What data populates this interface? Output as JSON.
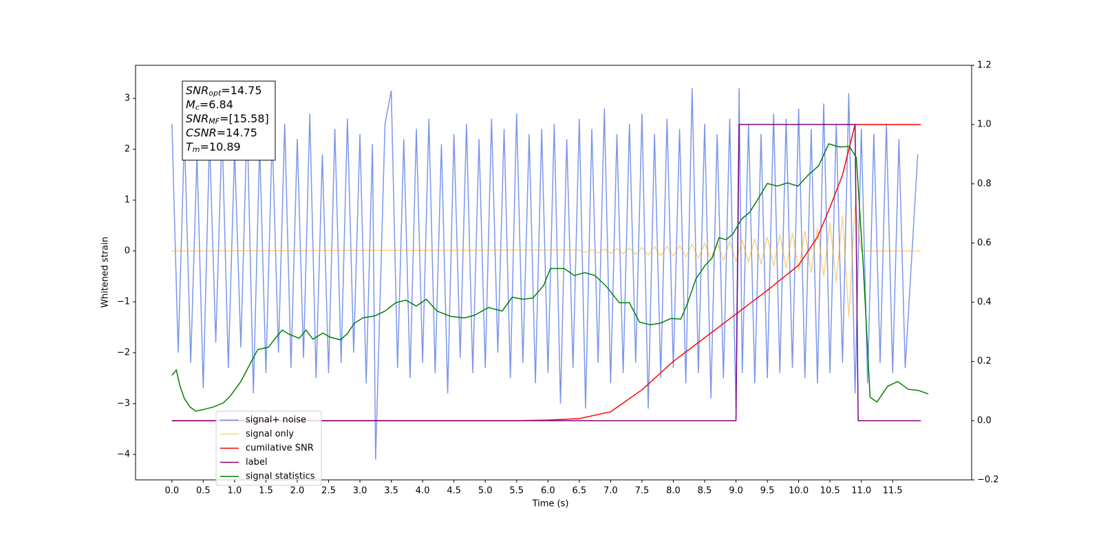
{
  "chart_data": {
    "type": "line",
    "xlabel": "Time (s)",
    "ylabel": "Whitened strain",
    "xlim": [
      -0.58,
      12.76
    ],
    "ylim": [
      -4.5,
      3.65
    ],
    "y2lim": [
      -0.2,
      1.2
    ],
    "xticks": [
      {
        "value": 0,
        "label": "0.0"
      },
      0.5,
      {
        "value": 1,
        "label": "1.0"
      },
      1.5,
      {
        "value": 2,
        "label": "2.0"
      },
      2.5,
      {
        "value": 3,
        "label": "3.0"
      },
      3.5,
      {
        "value": 4,
        "label": "4.0"
      },
      4.5,
      {
        "value": 5,
        "label": "5.0"
      },
      5.5,
      {
        "value": 6,
        "label": "6.0"
      },
      6.5,
      {
        "value": 7,
        "label": "7.0"
      },
      7.5,
      {
        "value": 8,
        "label": "8.0"
      },
      8.5,
      {
        "value": 9,
        "label": "9.0"
      },
      9.5,
      {
        "value": 10,
        "label": "10.0"
      },
      10.5,
      {
        "value": 11,
        "label": "11.0"
      },
      11.5
    ],
    "yticks": [
      {
        "value": -4,
        "label": "−4"
      },
      {
        "value": -3,
        "label": "−3"
      },
      {
        "value": -2,
        "label": "−2"
      },
      {
        "value": -1,
        "label": "−1"
      },
      0,
      1,
      2,
      3
    ],
    "y2ticks": [
      {
        "value": -0.2,
        "label": "−0.2"
      },
      {
        "value": 0,
        "label": "0.0"
      },
      0.2,
      0.4,
      0.6,
      0.8,
      {
        "value": 1,
        "label": "1.0"
      },
      1.2
    ],
    "annotations": [
      {
        "symbol": "SNR",
        "subscript": "opt",
        "text": "=14.75"
      },
      {
        "symbol": "M",
        "subscript": "c",
        "text": "=6.84"
      },
      {
        "symbol": "SNR",
        "subscript": "MF",
        "text": "=[15.58]"
      },
      {
        "symbol": "CSNR",
        "text": "=14.75"
      },
      {
        "symbol": "T",
        "subscript": "m",
        "text": "=10.89"
      }
    ],
    "series": [
      {
        "name": "signal+ noise",
        "color": "#4169e1",
        "alpha": 0.7,
        "x": [
          0,
          0.1,
          0.2,
          0.3,
          0.4,
          0.5,
          0.6,
          0.7,
          0.8,
          0.9,
          1,
          1.1,
          1.2,
          1.3,
          1.4,
          1.5,
          1.6,
          1.7,
          1.8,
          1.9,
          2,
          2.1,
          2.2,
          2.3,
          2.4,
          2.5,
          2.6,
          2.7,
          2.8,
          2.9,
          3,
          3.1,
          3.2,
          3.25,
          3.4,
          3.5,
          3.6,
          3.7,
          3.8,
          3.9,
          4,
          4.1,
          4.2,
          4.3,
          4.4,
          4.5,
          4.6,
          4.7,
          4.8,
          4.9,
          5,
          5.1,
          5.2,
          5.3,
          5.4,
          5.5,
          5.6,
          5.7,
          5.8,
          5.9,
          6,
          6.1,
          6.2,
          6.3,
          6.4,
          6.5,
          6.6,
          6.7,
          6.8,
          6.9,
          7,
          7.1,
          7.2,
          7.3,
          7.4,
          7.5,
          7.6,
          7.7,
          7.8,
          7.9,
          8,
          8.1,
          8.2,
          8.3,
          8.4,
          8.5,
          8.6,
          8.7,
          8.8,
          8.9,
          9,
          9.05,
          9.1,
          9.2,
          9.3,
          9.4,
          9.5,
          9.6,
          9.7,
          9.8,
          9.9,
          10,
          10.1,
          10.2,
          10.3,
          10.4,
          10.5,
          10.6,
          10.7,
          10.8,
          10.9,
          11,
          11.1,
          11.2,
          11.3,
          11.4,
          11.5,
          11.6,
          11.7,
          11.9
        ],
        "values": [
          2.5,
          -2.0,
          2.3,
          -2.2,
          1.9,
          -2.7,
          2.2,
          -1.8,
          2.4,
          -2.3,
          2.0,
          -1.9,
          2.6,
          -2.8,
          2.1,
          -2.4,
          2.3,
          -2.0,
          2.5,
          -2.3,
          2.2,
          -2.1,
          2.7,
          -2.5,
          1.9,
          -2.4,
          2.4,
          -2.2,
          2.6,
          -2.0,
          2.3,
          -2.6,
          2.1,
          -4.1,
          2.5,
          3.15,
          -2.3,
          2.2,
          -2.5,
          2.4,
          -2.2,
          2.6,
          -2.4,
          2.1,
          -2.8,
          2.3,
          -2.1,
          2.5,
          -2.4,
          2.2,
          -2.3,
          2.6,
          -2.0,
          2.4,
          -2.5,
          2.7,
          -2.2,
          2.3,
          -2.6,
          2.4,
          -2.4,
          2.5,
          -3.0,
          2.2,
          -2.3,
          2.6,
          -3.1,
          2.4,
          -2.2,
          2.8,
          -2.6,
          2.3,
          -2.4,
          2.5,
          -2.2,
          2.7,
          -3.1,
          2.3,
          -2.5,
          2.6,
          -2.3,
          2.4,
          -2.6,
          3.2,
          -2.4,
          2.5,
          -2.9,
          2.3,
          -2.5,
          2.6,
          -3.1,
          3.2,
          -2.4,
          2.5,
          -2.6,
          2.3,
          -2.5,
          2.7,
          -2.4,
          2.6,
          -2.3,
          2.8,
          -2.5,
          2.4,
          -2.6,
          2.9,
          -2.4,
          2.5,
          -2.2,
          3.1,
          -2.8,
          2.4,
          -2.6,
          2.3,
          -2.2,
          2.5,
          -2.4,
          2.2,
          -2.3,
          1.9
        ]
      },
      {
        "name": "signal only",
        "color": "#ffa500",
        "alpha": 0.5,
        "x": [
          0,
          6.5,
          6.6,
          6.7,
          6.8,
          6.9,
          7,
          7.1,
          7.2,
          7.3,
          7.4,
          7.5,
          7.6,
          7.7,
          7.8,
          7.9,
          8,
          8.1,
          8.2,
          8.3,
          8.4,
          8.5,
          8.6,
          8.7,
          8.8,
          8.9,
          9,
          9.1,
          9.2,
          9.3,
          9.4,
          9.5,
          9.6,
          9.7,
          9.8,
          9.9,
          10,
          10.1,
          10.2,
          10.3,
          10.4,
          10.5,
          10.6,
          10.7,
          10.8,
          10.9,
          11,
          11.95
        ],
        "values": [
          0,
          0.02,
          -0.03,
          0.03,
          -0.04,
          0.04,
          -0.05,
          0.05,
          -0.06,
          0.06,
          -0.07,
          0.07,
          -0.08,
          0.08,
          -0.09,
          0.09,
          -0.1,
          0.11,
          -0.12,
          0.13,
          -0.14,
          0.15,
          -0.16,
          0.17,
          -0.18,
          0.19,
          -0.2,
          0.21,
          -0.22,
          0.24,
          -0.26,
          0.28,
          -0.3,
          0.32,
          -0.34,
          0.36,
          -0.38,
          0.4,
          -0.43,
          0.46,
          -0.5,
          0.55,
          -0.62,
          0.7,
          -1.3,
          0.9,
          0,
          0
        ]
      },
      {
        "name": "cumilative SNR",
        "color": "#ff0000",
        "axis": "y2",
        "x": [
          0,
          5.5,
          6,
          6.5,
          7,
          7.5,
          8,
          8.5,
          9,
          9.5,
          10,
          10.3,
          10.5,
          10.7,
          10.9,
          10.95,
          11.95
        ],
        "values": [
          0,
          0,
          0.002,
          0.007,
          0.03,
          0.104,
          0.2,
          0.28,
          0.36,
          0.44,
          0.525,
          0.62,
          0.72,
          0.83,
          1,
          1,
          1
        ]
      },
      {
        "name": "label",
        "color": "#800080",
        "axis": "y2",
        "x": [
          0,
          9,
          9.05,
          10.9,
          10.95,
          11.95
        ],
        "values": [
          0,
          0,
          1,
          1,
          0,
          0
        ]
      },
      {
        "name": "signal statistics",
        "color": "#008000",
        "axis": "y2",
        "x": [
          0,
          0.07,
          0.13,
          0.2,
          0.29,
          0.38,
          0.49,
          0.66,
          0.82,
          0.93,
          1.1,
          1.26,
          1.37,
          1.54,
          1.65,
          1.76,
          1.87,
          2.03,
          2.14,
          2.25,
          2.41,
          2.52,
          2.69,
          2.8,
          2.91,
          3.05,
          3.24,
          3.4,
          3.57,
          3.73,
          3.9,
          4.06,
          4.23,
          4.45,
          4.67,
          4.83,
          5.05,
          5.27,
          5.43,
          5.6,
          5.76,
          5.93,
          6.04,
          6.15,
          6.26,
          6.42,
          6.59,
          6.75,
          6.92,
          7.14,
          7.3,
          7.46,
          7.63,
          7.79,
          7.96,
          8.12,
          8.23,
          8.36,
          8.51,
          8.62,
          8.73,
          8.84,
          8.95,
          9.09,
          9.22,
          9.33,
          9.5,
          9.66,
          9.82,
          9.99,
          10.15,
          10.32,
          10.48,
          10.65,
          10.81,
          10.92,
          11.03,
          11.14,
          11.25,
          11.42,
          11.58,
          11.75,
          11.91,
          12.07
        ],
        "values": [
          0.153,
          0.171,
          0.116,
          0.074,
          0.046,
          0.032,
          0.037,
          0.046,
          0.06,
          0.083,
          0.132,
          0.197,
          0.24,
          0.248,
          0.278,
          0.306,
          0.292,
          0.278,
          0.306,
          0.275,
          0.296,
          0.282,
          0.273,
          0.294,
          0.329,
          0.347,
          0.354,
          0.37,
          0.398,
          0.407,
          0.387,
          0.41,
          0.37,
          0.352,
          0.347,
          0.356,
          0.382,
          0.37,
          0.417,
          0.41,
          0.414,
          0.456,
          0.514,
          0.514,
          0.514,
          0.49,
          0.5,
          0.49,
          0.456,
          0.398,
          0.398,
          0.333,
          0.324,
          0.329,
          0.345,
          0.343,
          0.398,
          0.479,
          0.525,
          0.549,
          0.618,
          0.611,
          0.63,
          0.681,
          0.704,
          0.741,
          0.801,
          0.792,
          0.803,
          0.792,
          0.829,
          0.861,
          0.935,
          0.924,
          0.926,
          0.889,
          0.525,
          0.079,
          0.063,
          0.116,
          0.132,
          0.106,
          0.102,
          0.09
        ]
      }
    ]
  }
}
